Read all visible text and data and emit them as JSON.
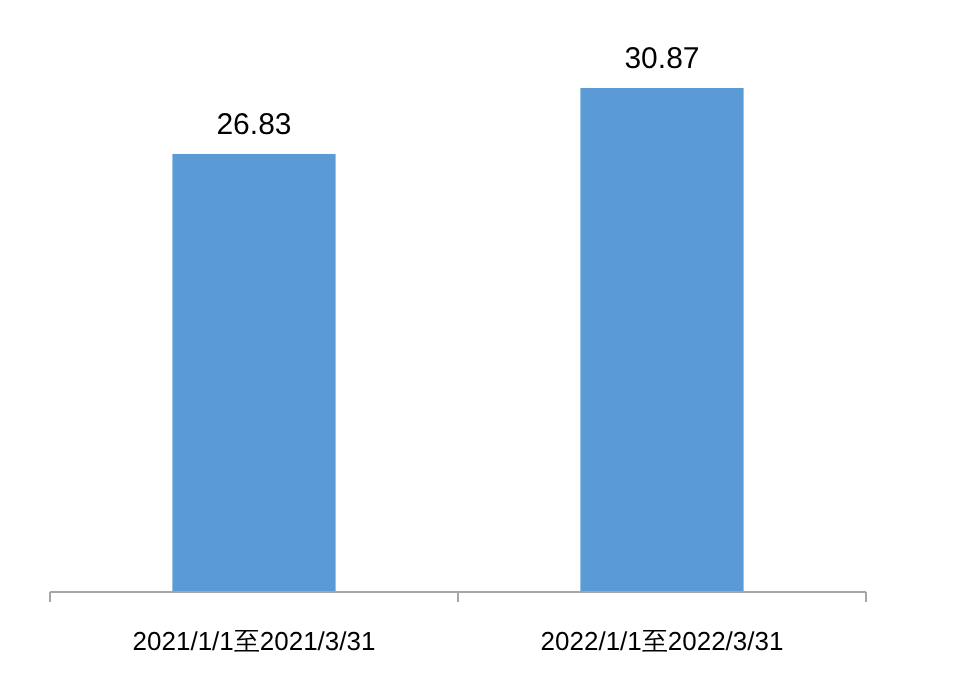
{
  "chart_data": {
    "type": "bar",
    "categories": [
      "2021/1/1至2021/3/31",
      "2022/1/1至2022/3/31"
    ],
    "series": [
      {
        "color": "#5b9bd5",
        "values": [
          26.83,
          30.87
        ]
      }
    ],
    "data_labels": true
  }
}
